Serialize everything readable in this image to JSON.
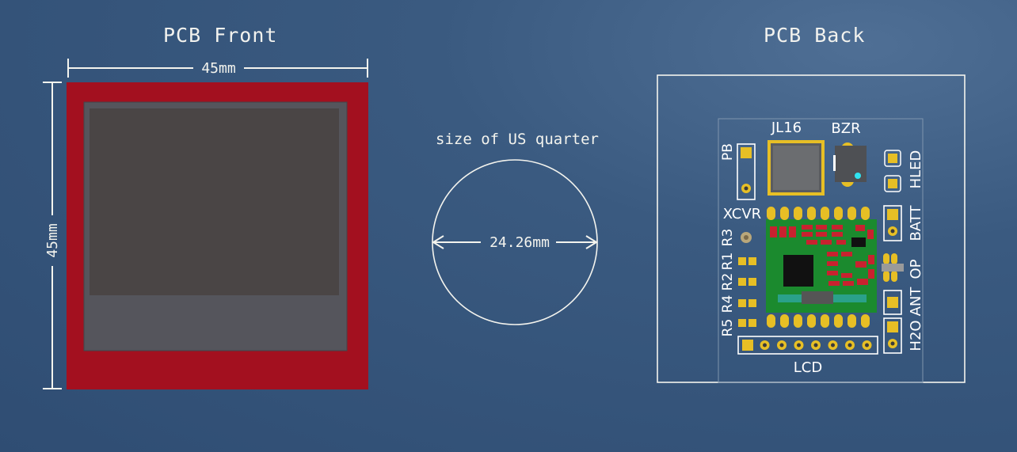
{
  "front": {
    "title": "PCB Front",
    "width_label": "45mm",
    "height_label": "45mm",
    "colors": {
      "board": "#a3101f",
      "panel": "#55555c",
      "screen": "#4a4545"
    }
  },
  "coin": {
    "caption": "size of US quarter",
    "diameter_label": "24.26mm"
  },
  "back": {
    "title": "PCB Back",
    "labels": {
      "jl16": "JL16",
      "bzr": "BZR",
      "pb": "PB",
      "xcvr": "XCVR",
      "hled": "HLED",
      "batt": "BATT",
      "op": "OP",
      "ant": "ANT",
      "h2o": "H2O",
      "lcd": "LCD",
      "r3": "R3",
      "r1": "R1",
      "r2": "R2",
      "r4": "R4",
      "r5": "R5"
    },
    "colors": {
      "pad": "#e7bf25",
      "module": "#1b8a2e",
      "smd": "#c8222f",
      "chip": "#111111"
    }
  }
}
